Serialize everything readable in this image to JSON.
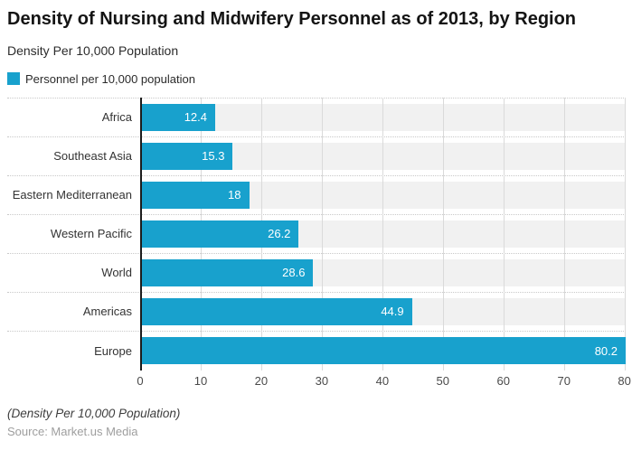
{
  "header": {
    "title": "Density of Nursing and Midwifery Personnel as of 2013, by Region",
    "subtitle": "Density Per 10,000 Population"
  },
  "legend": {
    "label": "Personnel per 10,000 population",
    "color": "#18a1cd"
  },
  "chart_data": {
    "type": "bar",
    "orientation": "horizontal",
    "title": "Density of Nursing and Midwifery Personnel as of 2013, by Region",
    "series_name": "Personnel per 10,000 population",
    "categories": [
      "Africa",
      "Southeast Asia",
      "Eastern Mediterranean",
      "Western Pacific",
      "World",
      "Americas",
      "Europe"
    ],
    "values": [
      12.4,
      15.3,
      18,
      26.2,
      28.6,
      44.9,
      80.2
    ],
    "value_labels": [
      "12.4",
      "15.3",
      "18",
      "26.2",
      "28.6",
      "44.9",
      "80.2"
    ],
    "x_ticks": [
      0,
      10,
      20,
      30,
      40,
      50,
      60,
      70,
      80
    ],
    "xlim": [
      0,
      80.2
    ],
    "xlabel": "",
    "ylabel": "",
    "grid": true,
    "bar_color": "#18a1cd",
    "track_color": "#f1f1f1",
    "legend_position": "top-left",
    "value_label_position": "inside-end"
  },
  "footer": {
    "note": "(Density Per 10,000 Population)",
    "source": "Source: Market.us Media"
  }
}
